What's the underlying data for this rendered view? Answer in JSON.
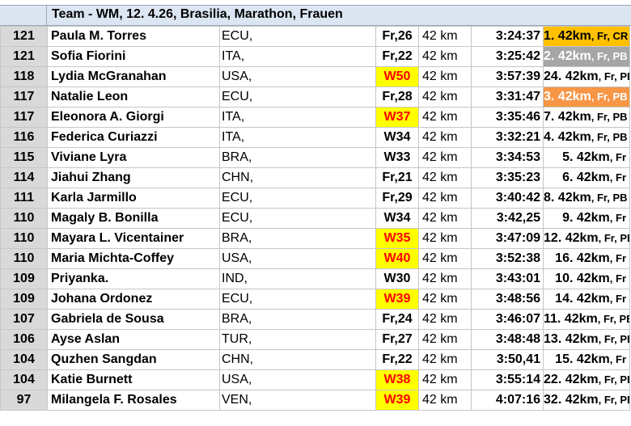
{
  "header": {
    "title": "Team - WM, 12. 4.26, Brasilia, Marathon, Frauen"
  },
  "colors": {
    "header_bg": "#dce6f2",
    "row_number_bg": "#d9d9d9",
    "highlight_cat_bg": "#ffff00",
    "highlight_cat_text": "#ff0000",
    "gold": "#ffc000",
    "silver": "#a6a6a6",
    "bronze": "#f79646"
  },
  "rows": [
    {
      "pts": "121",
      "name": "Paula M. Torres",
      "nat": "ECU,",
      "cat": "Fr,26",
      "cat_hl": false,
      "dist": "42 km",
      "time": "3:24:37",
      "place": "1. 42km",
      "place_tail": ", Fr, CR",
      "medal": "gold"
    },
    {
      "pts": "121",
      "name": "Sofia Fiorini",
      "nat": "ITA,",
      "cat": "Fr,22",
      "cat_hl": false,
      "dist": "42 km",
      "time": "3:25:42",
      "place": "2. 42km",
      "place_tail": ", Fr, PB",
      "medal": "silver"
    },
    {
      "pts": "118",
      "name": "Lydia McGranahan",
      "nat": "USA,",
      "cat": "W50",
      "cat_hl": true,
      "dist": "42 km",
      "time": "3:57:39",
      "place": "24. 42km",
      "place_tail": ", Fr, PB",
      "medal": ""
    },
    {
      "pts": "117",
      "name": "Natalie Leon",
      "nat": "ECU,",
      "cat": "Fr,28",
      "cat_hl": false,
      "dist": "42 km",
      "time": "3:31:47",
      "place": "3. 42km",
      "place_tail": ", Fr, PB",
      "medal": "bronze"
    },
    {
      "pts": "117",
      "name": "Eleonora A. Giorgi",
      "nat": "ITA,",
      "cat": "W37",
      "cat_hl": true,
      "dist": "42 km",
      "time": "3:35:46",
      "place": "7. 42km",
      "place_tail": ", Fr, PB",
      "medal": ""
    },
    {
      "pts": "116",
      "name": "Federica Curiazzi",
      "nat": "ITA,",
      "cat": "W34",
      "cat_hl": false,
      "dist": "42 km",
      "time": "3:32:21",
      "place": "4. 42km",
      "place_tail": ", Fr, PB",
      "medal": ""
    },
    {
      "pts": "115",
      "name": "Viviane Lyra",
      "nat": "BRA,",
      "cat": "W33",
      "cat_hl": false,
      "dist": "42 km",
      "time": "3:34:53",
      "place": "5. 42km",
      "place_tail": ", Fr",
      "medal": ""
    },
    {
      "pts": "114",
      "name": "Jiahui Zhang",
      "nat": "CHN,",
      "cat": "Fr,21",
      "cat_hl": false,
      "dist": "42 km",
      "time": "3:35:23",
      "place": "6. 42km",
      "place_tail": ", Fr",
      "medal": ""
    },
    {
      "pts": "111",
      "name": "Karla Jarmillo",
      "nat": "ECU,",
      "cat": "Fr,29",
      "cat_hl": false,
      "dist": "42 km",
      "time": "3:40:42",
      "place": "8. 42km",
      "place_tail": ", Fr, PB",
      "medal": ""
    },
    {
      "pts": "110",
      "name": "Magaly B. Bonilla",
      "nat": "ECU,",
      "cat": "W34",
      "cat_hl": false,
      "dist": "42 km",
      "time": "3:42,25",
      "place": "9. 42km",
      "place_tail": ", Fr",
      "medal": ""
    },
    {
      "pts": "110",
      "name": "Mayara L. Vicentainer",
      "nat": "BRA,",
      "cat": "W35",
      "cat_hl": true,
      "dist": "42 km",
      "time": "3:47:09",
      "place": "12. 42km",
      "place_tail": ", Fr, PB",
      "medal": ""
    },
    {
      "pts": "110",
      "name": "Maria Michta-Coffey",
      "nat": "USA,",
      "cat": "W40",
      "cat_hl": true,
      "dist": "42 km",
      "time": "3:52:38",
      "place": "16. 42km",
      "place_tail": ", Fr",
      "medal": ""
    },
    {
      "pts": "109",
      "name": "Priyanka.",
      "nat": "IND,",
      "cat": "W30",
      "cat_hl": false,
      "dist": "42 km",
      "time": "3:43:01",
      "place": "10. 42km",
      "place_tail": ", Fr",
      "medal": ""
    },
    {
      "pts": "109",
      "name": "Johana Ordonez",
      "nat": "ECU,",
      "cat": "W39",
      "cat_hl": true,
      "dist": "42 km",
      "time": "3:48:56",
      "place": "14. 42km",
      "place_tail": ", Fr",
      "medal": ""
    },
    {
      "pts": "107",
      "name": "Gabriela de Sousa",
      "nat": "BRA,",
      "cat": "Fr,24",
      "cat_hl": false,
      "dist": "42 km",
      "time": "3:46:07",
      "place": "11. 42km",
      "place_tail": ", Fr, PB",
      "medal": ""
    },
    {
      "pts": "106",
      "name": "Ayse Aslan",
      "nat": "TUR,",
      "cat": "Fr,27",
      "cat_hl": false,
      "dist": "42 km",
      "time": "3:48:48",
      "place": "13. 42km",
      "place_tail": ", Fr, PB",
      "medal": ""
    },
    {
      "pts": "104",
      "name": "Quzhen Sangdan",
      "nat": "CHN,",
      "cat": "Fr,22",
      "cat_hl": false,
      "dist": "42 km",
      "time": "3:50,41",
      "place": "15. 42km",
      "place_tail": ", Fr",
      "medal": ""
    },
    {
      "pts": "104",
      "name": "Katie Burnett",
      "nat": "USA,",
      "cat": "W38",
      "cat_hl": true,
      "dist": "42 km",
      "time": "3:55:14",
      "place": "22. 42km",
      "place_tail": ", Fr, PB",
      "medal": ""
    },
    {
      "pts": "97",
      "name": "Milangela F. Rosales",
      "nat": "VEN,",
      "cat": "W39",
      "cat_hl": true,
      "dist": "42 km",
      "time": "4:07:16",
      "place": "32. 42km",
      "place_tail": ", Fr, PB",
      "medal": ""
    }
  ]
}
